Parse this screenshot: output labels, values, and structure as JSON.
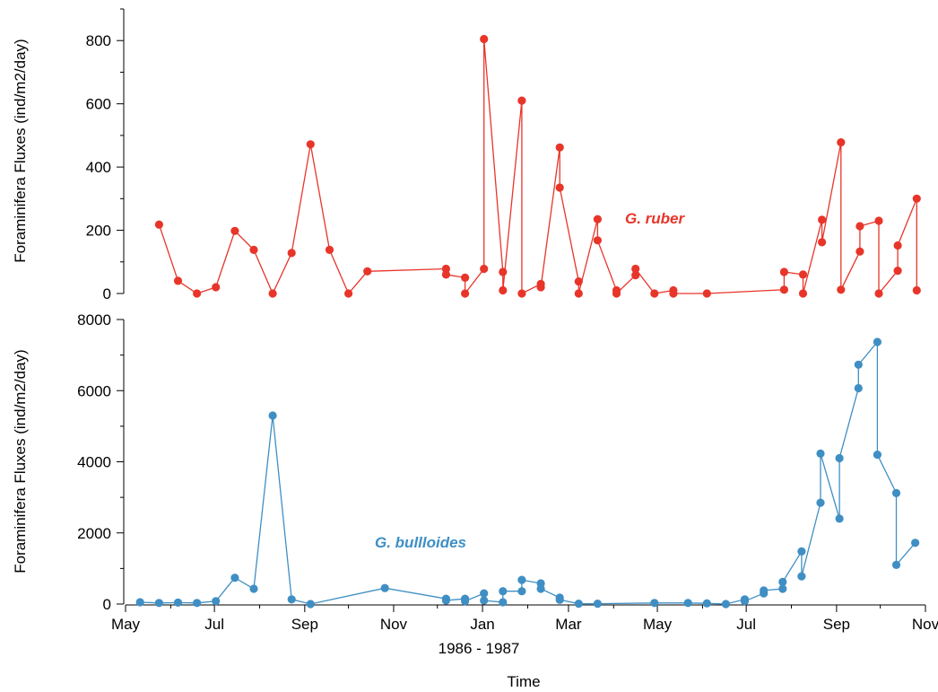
{
  "chart_data": [
    {
      "type": "line",
      "ylabel": "Foraminifera Fluxes (ind/m2/day)",
      "ylim": [
        0,
        900
      ],
      "yticks": [
        0,
        200,
        400,
        600,
        800
      ],
      "color": "#e8352a",
      "series": [
        {
          "name": "G. ruber",
          "points": [
            [
              "1986-05-24",
              218
            ],
            [
              "1986-06-06",
              40
            ],
            [
              "1986-06-19",
              0
            ],
            [
              "1986-07-02",
              20
            ],
            [
              "1986-07-15",
              198
            ],
            [
              "1986-07-28",
              138
            ],
            [
              "1986-08-10",
              0
            ],
            [
              "1986-08-23",
              128
            ],
            [
              "1986-09-05",
              472
            ],
            [
              "1986-09-18",
              138
            ],
            [
              "1986-10-01",
              0
            ],
            [
              "1986-10-14",
              70
            ],
            [
              "1986-12-07",
              78
            ],
            [
              "1986-12-07",
              60
            ],
            [
              "1986-12-20",
              50
            ],
            [
              "1986-12-20",
              0
            ],
            [
              "1987-01-02",
              78
            ],
            [
              "1987-01-02",
              805
            ],
            [
              "1987-01-15",
              68
            ],
            [
              "1987-01-15",
              10
            ],
            [
              "1987-01-28",
              610
            ],
            [
              "1987-01-28",
              0
            ],
            [
              "1987-02-10",
              30
            ],
            [
              "1987-02-10",
              20
            ],
            [
              "1987-02-23",
              462
            ],
            [
              "1987-02-23",
              335
            ],
            [
              "1987-03-08",
              38
            ],
            [
              "1987-03-08",
              0
            ],
            [
              "1987-03-21",
              235
            ],
            [
              "1987-03-21",
              168
            ],
            [
              "1987-04-03",
              10
            ],
            [
              "1987-04-03",
              0
            ],
            [
              "1987-04-16",
              58
            ],
            [
              "1987-04-16",
              78
            ],
            [
              "1987-04-29",
              0
            ],
            [
              "1987-05-12",
              10
            ],
            [
              "1987-05-12",
              0
            ],
            [
              "1987-06-04",
              0
            ],
            [
              "1987-07-27",
              12
            ],
            [
              "1987-07-27",
              68
            ],
            [
              "1987-08-09",
              60
            ],
            [
              "1987-08-09",
              0
            ],
            [
              "1987-08-22",
              233
            ],
            [
              "1987-08-22",
              162
            ],
            [
              "1987-09-04",
              478
            ],
            [
              "1987-09-04",
              12
            ],
            [
              "1987-09-17",
              133
            ],
            [
              "1987-09-17",
              213
            ],
            [
              "1987-09-30",
              230
            ],
            [
              "1987-09-30",
              0
            ],
            [
              "1987-10-13",
              72
            ],
            [
              "1987-10-13",
              152
            ],
            [
              "1987-10-26",
              300
            ],
            [
              "1987-10-26",
              10
            ]
          ]
        }
      ]
    },
    {
      "type": "line",
      "ylabel": "Foraminifera Fluxes (ind/m2/day)",
      "xlabel": "Time",
      "ylim": [
        0,
        8000
      ],
      "yticks": [
        0,
        2000,
        4000,
        6000,
        8000
      ],
      "xlim": [
        "1986-05-01",
        "1987-11-01"
      ],
      "xticks": [
        {
          "date": "1986-05-01",
          "label": "May"
        },
        {
          "date": "1986-07-01",
          "label": "Jul"
        },
        {
          "date": "1986-09-01",
          "label": "Sep"
        },
        {
          "date": "1986-11-01",
          "label": "Nov"
        },
        {
          "date": "1987-01-01",
          "label": "Jan"
        },
        {
          "date": "1987-03-01",
          "label": "Mar"
        },
        {
          "date": "1987-05-01",
          "label": "May"
        },
        {
          "date": "1987-07-01",
          "label": "Jul"
        },
        {
          "date": "1987-09-01",
          "label": "Sep"
        },
        {
          "date": "1987-11-01",
          "label": "Nov"
        }
      ],
      "year_label": "1986 - 1987",
      "color": "#3f8fc4",
      "series": [
        {
          "name": "G. bullloides",
          "points": [
            [
              "1986-05-11",
              50
            ],
            [
              "1986-05-24",
              30
            ],
            [
              "1986-06-06",
              40
            ],
            [
              "1986-06-19",
              30
            ],
            [
              "1986-07-02",
              80
            ],
            [
              "1986-07-15",
              740
            ],
            [
              "1986-07-28",
              430
            ],
            [
              "1986-08-10",
              5300
            ],
            [
              "1986-08-23",
              130
            ],
            [
              "1986-09-05",
              0
            ],
            [
              "1986-10-26",
              450
            ],
            [
              "1986-12-07",
              150
            ],
            [
              "1986-12-07",
              100
            ],
            [
              "1986-12-20",
              150
            ],
            [
              "1986-12-20",
              80
            ],
            [
              "1987-01-02",
              300
            ],
            [
              "1987-01-02",
              100
            ],
            [
              "1987-01-15",
              50
            ],
            [
              "1987-01-15",
              360
            ],
            [
              "1987-01-28",
              360
            ],
            [
              "1987-01-28",
              680
            ],
            [
              "1987-02-10",
              580
            ],
            [
              "1987-02-10",
              430
            ],
            [
              "1987-02-23",
              180
            ],
            [
              "1987-02-23",
              120
            ],
            [
              "1987-03-08",
              10
            ],
            [
              "1987-03-21",
              10
            ],
            [
              "1987-04-29",
              30
            ],
            [
              "1987-05-22",
              30
            ],
            [
              "1987-06-04",
              20
            ],
            [
              "1987-06-17",
              0
            ],
            [
              "1987-06-30",
              130
            ],
            [
              "1987-06-30",
              80
            ],
            [
              "1987-07-13",
              300
            ],
            [
              "1987-07-13",
              380
            ],
            [
              "1987-07-26",
              430
            ],
            [
              "1987-07-26",
              620
            ],
            [
              "1987-08-08",
              1480
            ],
            [
              "1987-08-08",
              780
            ],
            [
              "1987-08-21",
              2850
            ],
            [
              "1987-08-21",
              4230
            ],
            [
              "1987-09-03",
              2400
            ],
            [
              "1987-09-03",
              4100
            ],
            [
              "1987-09-16",
              6070
            ],
            [
              "1987-09-16",
              6730
            ],
            [
              "1987-09-29",
              7370
            ],
            [
              "1987-09-29",
              4200
            ],
            [
              "1987-10-12",
              3120
            ],
            [
              "1987-10-12",
              1100
            ],
            [
              "1987-10-25",
              1720
            ]
          ]
        }
      ]
    }
  ]
}
